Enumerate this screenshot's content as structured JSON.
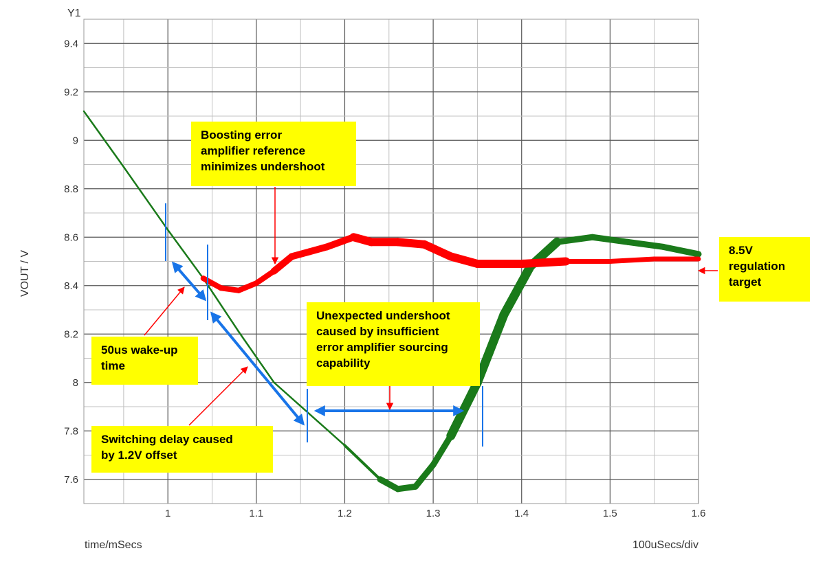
{
  "chart_data": {
    "type": "line",
    "title": "",
    "trace_label": "Y1",
    "ylabel": "VOUT / V",
    "xlabel": "time/mSecs",
    "x_scale_label": "100uSecs/div",
    "xlim": [
      0.905,
      1.6
    ],
    "ylim": [
      7.5,
      9.5
    ],
    "x_ticks": [
      1,
      1.1,
      1.2,
      1.3,
      1.4,
      1.5,
      1.6
    ],
    "x_tick_labels": [
      "1",
      "1.1",
      "1.2",
      "1.3",
      "1.4",
      "1.5",
      "1.6"
    ],
    "y_ticks": [
      7.6,
      7.8,
      8,
      8.2,
      8.4,
      8.6,
      8.8,
      9,
      9.2,
      9.4
    ],
    "y_tick_labels": [
      "7.6",
      "7.8",
      "8",
      "8.2",
      "8.4",
      "8.6",
      "8.8",
      "9",
      "9.2",
      "9.4"
    ],
    "grid": true,
    "series": [
      {
        "color": "#1a7a1a",
        "x": [
          0.905,
          0.95,
          1.0,
          1.04,
          1.08,
          1.12,
          1.16,
          1.2,
          1.24,
          1.26,
          1.28,
          1.3,
          1.32,
          1.35,
          1.38,
          1.41,
          1.44,
          1.48,
          1.52,
          1.56,
          1.6
        ],
        "y": [
          9.12,
          8.89,
          8.63,
          8.43,
          8.21,
          8.0,
          7.87,
          7.74,
          7.6,
          7.56,
          7.57,
          7.66,
          7.78,
          8.0,
          8.28,
          8.48,
          8.58,
          8.6,
          8.58,
          8.56,
          8.53
        ]
      },
      {
        "color": "#ff0000",
        "x": [
          1.04,
          1.06,
          1.08,
          1.1,
          1.12,
          1.14,
          1.16,
          1.18,
          1.21,
          1.23,
          1.26,
          1.29,
          1.32,
          1.35,
          1.4,
          1.45,
          1.5,
          1.55,
          1.6
        ],
        "y": [
          8.43,
          8.39,
          8.38,
          8.41,
          8.46,
          8.52,
          8.54,
          8.56,
          8.6,
          8.58,
          8.58,
          8.57,
          8.52,
          8.49,
          8.49,
          8.5,
          8.5,
          8.51,
          8.51
        ]
      }
    ],
    "annotations": [
      {
        "text": "Boosting error amplifier reference minimizes undershoot"
      },
      {
        "text": "8.5V regulation target"
      },
      {
        "text": "Unexpected undershoot caused by insufficient error amplifier sourcing capability"
      },
      {
        "text": "50us wake-up time"
      },
      {
        "text": "Switching delay caused by 1.2V offset"
      }
    ]
  },
  "annotations": {
    "boost_lines": [
      "Boosting error",
      "amplifier reference",
      "minimizes undershoot"
    ],
    "target_lines": [
      "8.5V",
      "regulation",
      "target"
    ],
    "undershoot_lines": [
      "Unexpected undershoot",
      "caused by insufficient",
      "error amplifier sourcing",
      "capability"
    ],
    "wake_lines": [
      "50us wake-up",
      "time"
    ],
    "delay_lines": [
      "Switching delay caused",
      "by 1.2V offset"
    ]
  },
  "colors": {
    "note_bg": "#ffff00",
    "grid": "#c0c0c0",
    "marker_blue": "#1874e8",
    "arrow_red": "#ff0000"
  }
}
